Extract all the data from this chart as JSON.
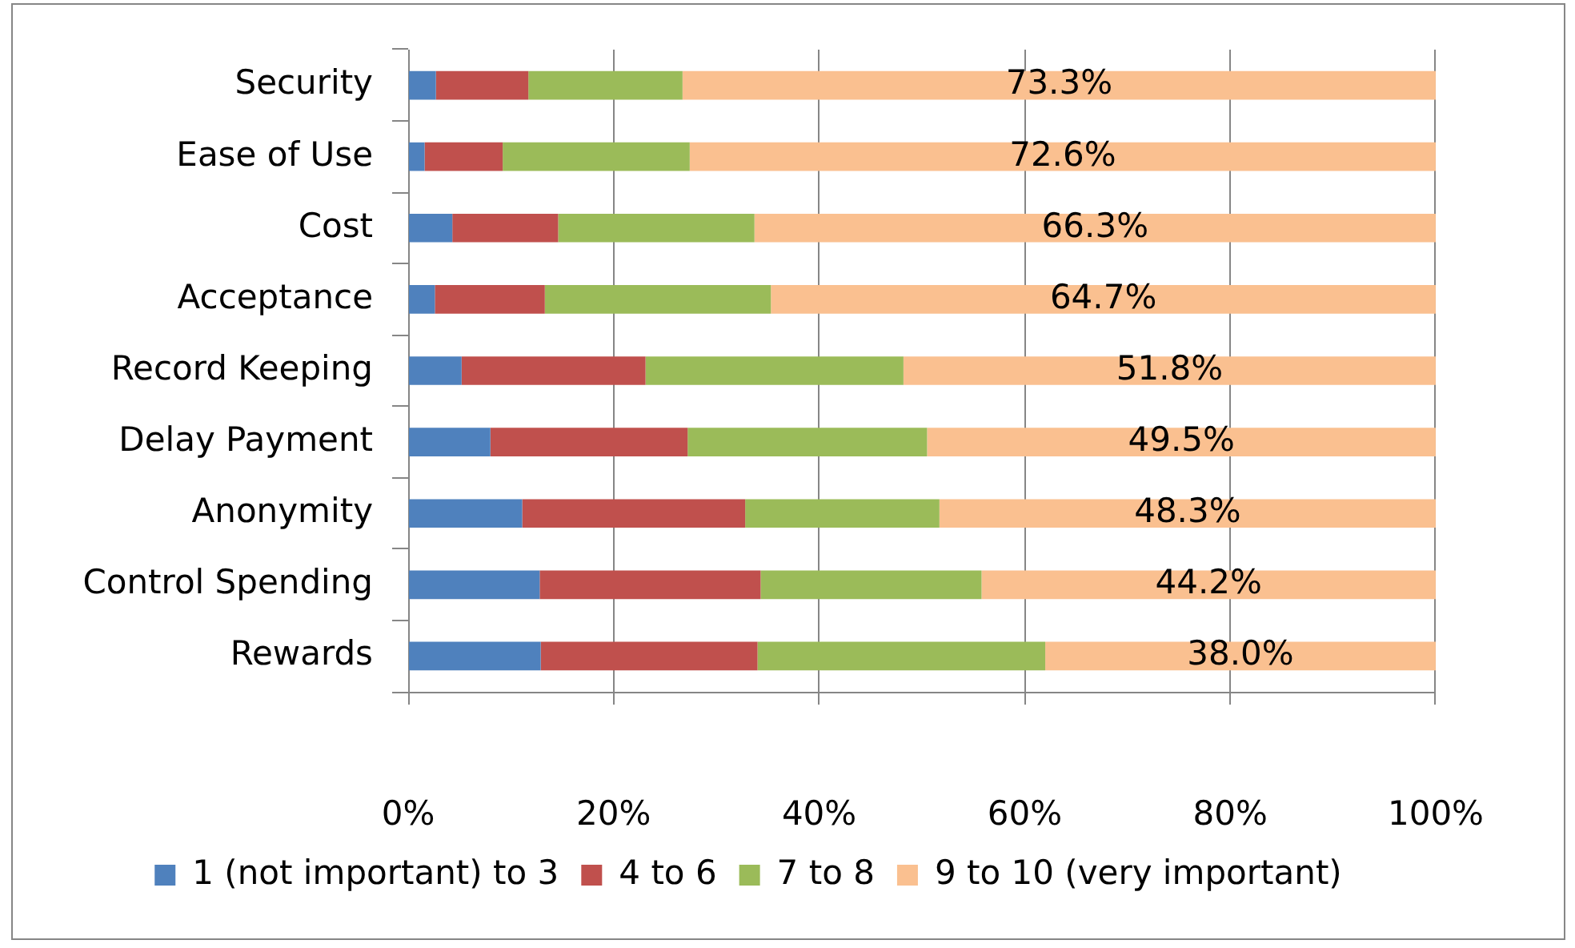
{
  "chart_data": {
    "type": "bar",
    "orientation": "horizontal",
    "stacked": true,
    "categories": [
      "Security",
      "Ease of Use",
      "Cost",
      "Acceptance",
      "Record Keeping",
      "Delay Payment",
      "Anonymity",
      "Control Spending",
      "Rewards"
    ],
    "series": [
      {
        "name": "1 (not important) to 3",
        "color": "#4f81bd",
        "values": [
          2.7,
          1.6,
          4.3,
          2.6,
          5.2,
          8.0,
          11.1,
          12.8,
          12.9
        ]
      },
      {
        "name": "4 to 6",
        "color": "#c0504d",
        "values": [
          9.0,
          7.6,
          10.3,
          10.7,
          17.9,
          19.2,
          21.7,
          21.5,
          21.1
        ]
      },
      {
        "name": "7 to 8",
        "color": "#9bbb59",
        "values": [
          15.0,
          18.2,
          19.1,
          22.0,
          25.1,
          23.3,
          18.9,
          21.5,
          28.0
        ]
      },
      {
        "name": "9 to 10 (very important)",
        "color": "#fac090",
        "values": [
          73.3,
          72.6,
          66.3,
          64.7,
          51.8,
          49.5,
          48.3,
          44.2,
          38.0
        ],
        "value_labels": [
          "73.3%",
          "72.6%",
          "66.3%",
          "64.7%",
          "51.8%",
          "49.5%",
          "48.3%",
          "44.2%",
          "38.0%"
        ]
      }
    ],
    "xlim": [
      0,
      100
    ],
    "xticks": [
      {
        "value": 0,
        "label": "0%"
      },
      {
        "value": 20,
        "label": "20%"
      },
      {
        "value": 40,
        "label": "40%"
      },
      {
        "value": 60,
        "label": "60%"
      },
      {
        "value": 80,
        "label": "80%"
      },
      {
        "value": 100,
        "label": "100%"
      }
    ],
    "grid": "x",
    "legend": "bottom"
  }
}
